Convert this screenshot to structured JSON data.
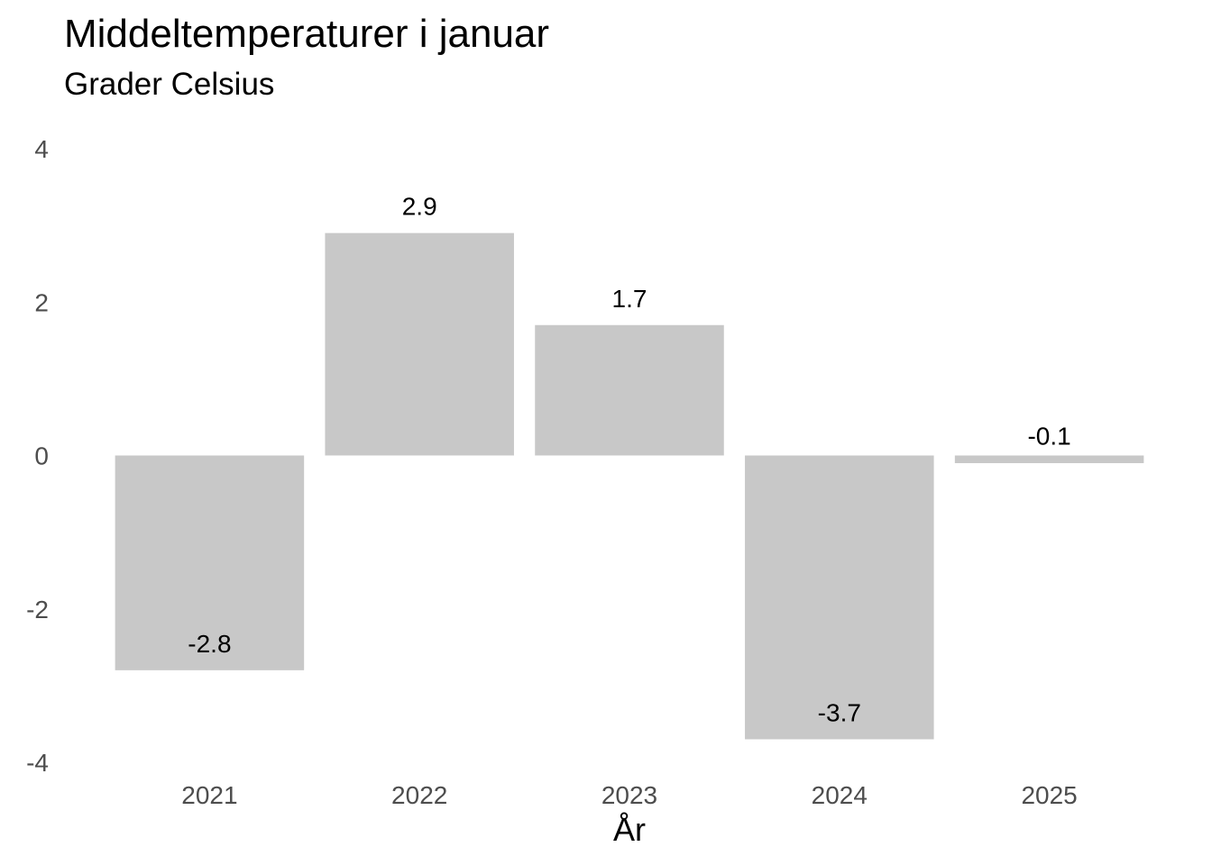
{
  "chart_data": {
    "type": "bar",
    "title": "Middeltemperaturer i januar",
    "subtitle": "Grader Celsius",
    "xlabel": "År",
    "ylabel": "",
    "categories": [
      "2021",
      "2022",
      "2023",
      "2024",
      "2025"
    ],
    "values": [
      -2.8,
      2.9,
      1.7,
      -3.7,
      -0.1
    ],
    "data_labels": [
      "-2.8",
      "2.9",
      "1.7",
      "-3.7",
      "-0.1"
    ],
    "ylim": [
      -4,
      4
    ],
    "yticks": [
      4,
      2,
      0,
      -2,
      -4
    ],
    "ytick_labels": [
      "4",
      "2",
      "0",
      "-2",
      "-4"
    ],
    "grid": false,
    "legend": "none",
    "bar_color": "#c8c8c8"
  }
}
